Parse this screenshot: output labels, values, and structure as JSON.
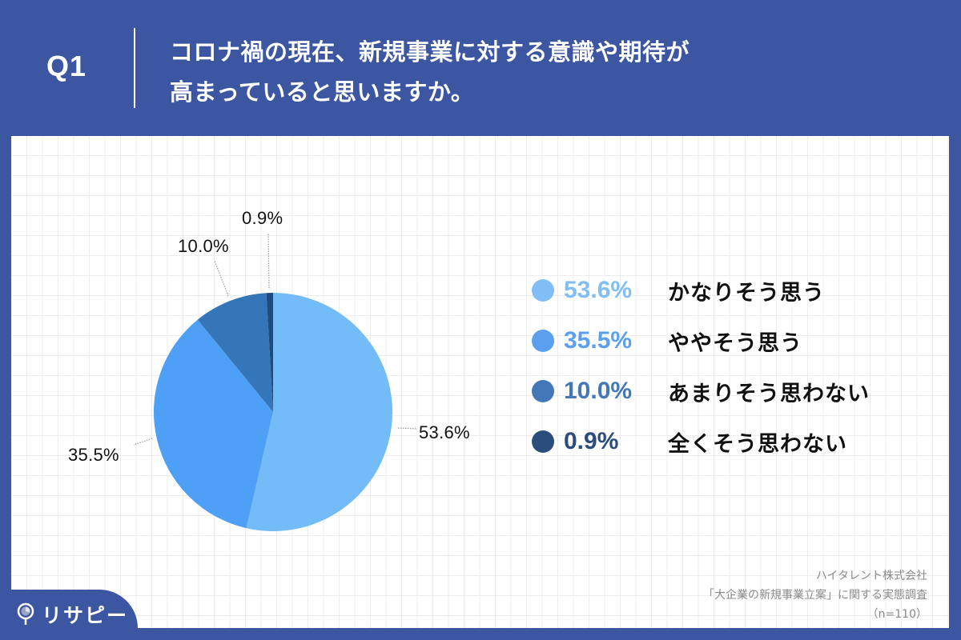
{
  "header": {
    "question_number": "Q1",
    "title_line1": "コロナ禍の現在、新規事業に対する意識や期待が",
    "title_line2": "高まっていると思いますか。"
  },
  "chart_data": {
    "type": "pie",
    "title": "コロナ禍の現在、新規事業に対する意識や期待が高まっていると思いますか。",
    "start_angle": "12 o'clock",
    "direction": "clockwise",
    "categories": [
      "かなりそう思う",
      "ややそう思う",
      "あまりそう思わない",
      "全くそう思わない"
    ],
    "values": [
      53.6,
      35.5,
      10.0,
      0.9
    ],
    "labels": [
      "53.6%",
      "35.5%",
      "10.0%",
      "0.9%"
    ],
    "colors": [
      "#74BCF8",
      "#4DA0F5",
      "#3476B8",
      "#1E4B7E"
    ],
    "legend_position": "right",
    "sample_size": "n=110"
  },
  "legend": [
    {
      "pct": "53.6%",
      "label": "かなりそう思う",
      "color": "#80BEF5"
    },
    {
      "pct": "35.5%",
      "label": "ややそう思う",
      "color": "#5BA0EE"
    },
    {
      "pct": "10.0%",
      "label": "あまりそう思わない",
      "color": "#4477B7"
    },
    {
      "pct": "0.9%",
      "label": "全くそう思わない",
      "color": "#2B4D7E"
    }
  ],
  "source": {
    "line1": "ハイタレント株式会社",
    "line2": "「大企業の新規事業立案」に関する実態調査",
    "line3": "（n=110）"
  },
  "logo": {
    "text": "リサピー"
  },
  "colors": {
    "background": "#3C56A2",
    "panel": "#FFFFFF",
    "grid": "#EDEDED"
  }
}
